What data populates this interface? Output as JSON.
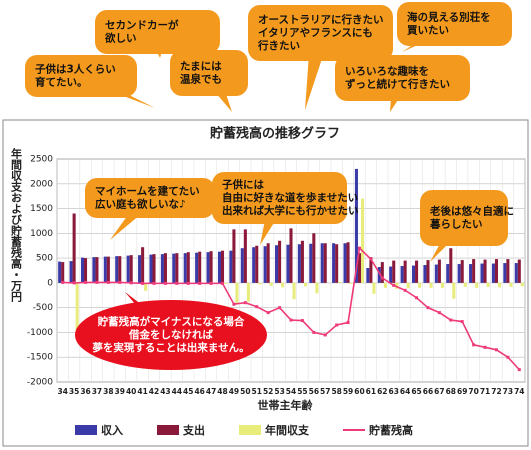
{
  "chart_data": {
    "type": "bar",
    "title": "貯蓄残高の推移グラフ",
    "x_label": "世帯主年齢",
    "y_label": "年間収支および貯蓄残高・万円",
    "categories": [
      "34",
      "35",
      "36",
      "37",
      "38",
      "39",
      "40",
      "41",
      "42",
      "43",
      "44",
      "45",
      "46",
      "47",
      "48",
      "49",
      "50",
      "51",
      "52",
      "53",
      "54",
      "55",
      "56",
      "57",
      "58",
      "59",
      "60",
      "61",
      "62",
      "63",
      "64",
      "65",
      "66",
      "67",
      "68",
      "69",
      "70",
      "71",
      "72",
      "73",
      "74"
    ],
    "series": [
      {
        "name": "収入",
        "color": "#3a3aa8",
        "kind": "bar",
        "values": [
          430,
          440,
          510,
          520,
          530,
          540,
          550,
          560,
          570,
          580,
          590,
          600,
          610,
          620,
          630,
          650,
          700,
          720,
          740,
          760,
          770,
          780,
          790,
          800,
          800,
          800,
          2300,
          300,
          320,
          330,
          340,
          350,
          360,
          370,
          380,
          380,
          380,
          390,
          390,
          400,
          400
        ]
      },
      {
        "name": "支出",
        "color": "#8b1a3a",
        "kind": "bar",
        "values": [
          420,
          1400,
          500,
          520,
          530,
          540,
          560,
          720,
          580,
          600,
          600,
          620,
          630,
          640,
          650,
          1080,
          1080,
          750,
          800,
          850,
          1100,
          850,
          1000,
          800,
          780,
          820,
          600,
          520,
          420,
          450,
          450,
          450,
          460,
          470,
          700,
          460,
          480,
          470,
          480,
          480,
          470
        ]
      },
      {
        "name": "年間収支",
        "color": "#e8ec7a",
        "kind": "bar",
        "values": [
          10,
          -960,
          10,
          0,
          0,
          0,
          -10,
          -160,
          -10,
          -20,
          -10,
          -20,
          -20,
          -20,
          -20,
          -430,
          -380,
          -30,
          -60,
          -90,
          -330,
          -70,
          -210,
          0,
          20,
          -20,
          1700,
          -220,
          -100,
          -120,
          -110,
          -100,
          -100,
          -100,
          -320,
          -80,
          -100,
          -80,
          -90,
          -80,
          -70
        ]
      },
      {
        "name": "貯蓄残高",
        "color": "#ee3a7a",
        "kind": "line",
        "values": [
          10,
          0,
          10,
          10,
          10,
          10,
          0,
          -10,
          -10,
          -10,
          -10,
          -10,
          -10,
          -10,
          -10,
          -430,
          -400,
          -480,
          -600,
          -500,
          -750,
          -760,
          -1000,
          -1050,
          -850,
          -800,
          700,
          480,
          100,
          -50,
          -150,
          -300,
          -500,
          -600,
          -750,
          -780,
          -1250,
          -1300,
          -1350,
          -1500,
          -1750
        ]
      }
    ],
    "ylim": [
      -2000,
      2500
    ],
    "yticks": [
      -2000,
      -1500,
      -1000,
      -500,
      0,
      500,
      1000,
      1500,
      2000,
      2500
    ],
    "grid": true,
    "annotations": [
      {
        "lines": [
          "子供は3人くらい",
          "育てたい。"
        ]
      },
      {
        "lines": [
          "セカンドカーが",
          "欲しい"
        ]
      },
      {
        "lines": [
          "たまには",
          "温泉でも"
        ]
      },
      {
        "lines": [
          "オーストラリアに行きたい",
          "イタリアやフランスにも",
          "行きたい"
        ]
      },
      {
        "lines": [
          "海の見える別荘を",
          "買いたい"
        ]
      },
      {
        "lines": [
          "いろいろな趣味を",
          "ずっと続けて行きたい"
        ]
      },
      {
        "lines": [
          "マイホームを建てたい",
          "広い庭も欲しいな♪"
        ]
      },
      {
        "lines": [
          "子供には",
          "自由に好きな道を歩ませたい",
          "出来れば大学にも行かせたい"
        ]
      },
      {
        "lines": [
          "老後は悠々自適に",
          "暮らしたい"
        ]
      },
      {
        "lines": [
          "貯蓄残高がマイナスになる場合",
          "借金をしなければ",
          "夢を実現することは出来ません。"
        ]
      }
    ]
  }
}
